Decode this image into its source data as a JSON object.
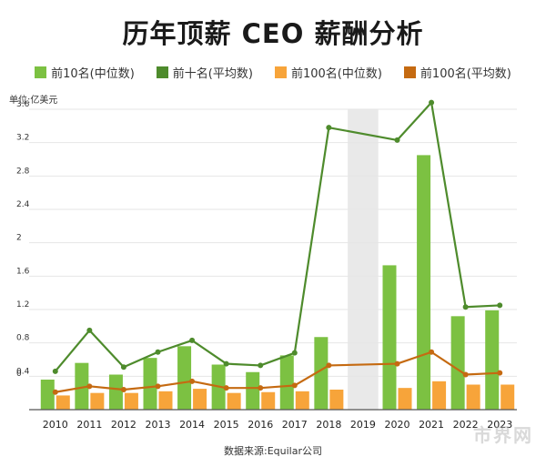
{
  "title": "历年顶薪 CEO 薪酬分析",
  "unit_label": "单位:亿美元",
  "source": "数据来源:Equilar公司",
  "watermark": "市界网",
  "colors": {
    "top10_median": "#7cc142",
    "top10_mean": "#4e8b2c",
    "top100_median": "#f7a43a",
    "top100_mean": "#c56a11",
    "highlight_band": "#e9e9e9",
    "baseline": "#555555"
  },
  "chart_data": {
    "type": "bar",
    "title": "历年顶薪 CEO 薪酬分析",
    "ylabel": "单位:亿美元",
    "ylim": [
      0,
      3.6
    ],
    "ytick_labels": [
      "0",
      "0.4",
      "0.8",
      "1.2",
      "1.6",
      "2",
      "2.4",
      "2.8",
      "3.2",
      "3.6"
    ],
    "grid": true,
    "legend_position": "top",
    "highlight_category": "2019",
    "categories": [
      "2010",
      "2011",
      "2012",
      "2013",
      "2014",
      "2015",
      "2016",
      "2017",
      "2018",
      "2019",
      "2020",
      "2021",
      "2022",
      "2023"
    ],
    "series": [
      {
        "name": "前10名(中位数)",
        "kind": "bar",
        "color": "#7cc142",
        "values": [
          0.36,
          0.56,
          0.42,
          0.62,
          0.76,
          0.54,
          0.45,
          0.65,
          0.87,
          null,
          1.73,
          3.05,
          1.12,
          1.19
        ]
      },
      {
        "name": "前十名(平均数)",
        "kind": "line",
        "color": "#4e8b2c",
        "values": [
          0.46,
          0.95,
          0.51,
          0.69,
          0.83,
          0.55,
          0.53,
          0.68,
          3.38,
          null,
          3.23,
          3.68,
          1.23,
          1.25
        ]
      },
      {
        "name": "前100名(中位数)",
        "kind": "bar",
        "color": "#f7a43a",
        "values": [
          0.17,
          0.2,
          0.2,
          0.22,
          0.25,
          0.2,
          0.21,
          0.22,
          0.24,
          null,
          0.26,
          0.34,
          0.3,
          0.3
        ]
      },
      {
        "name": "前100名(平均数)",
        "kind": "line",
        "color": "#c56a11",
        "values": [
          0.21,
          0.28,
          0.24,
          0.28,
          0.34,
          0.26,
          0.26,
          0.29,
          0.53,
          null,
          0.55,
          0.69,
          0.42,
          0.44
        ]
      }
    ]
  }
}
